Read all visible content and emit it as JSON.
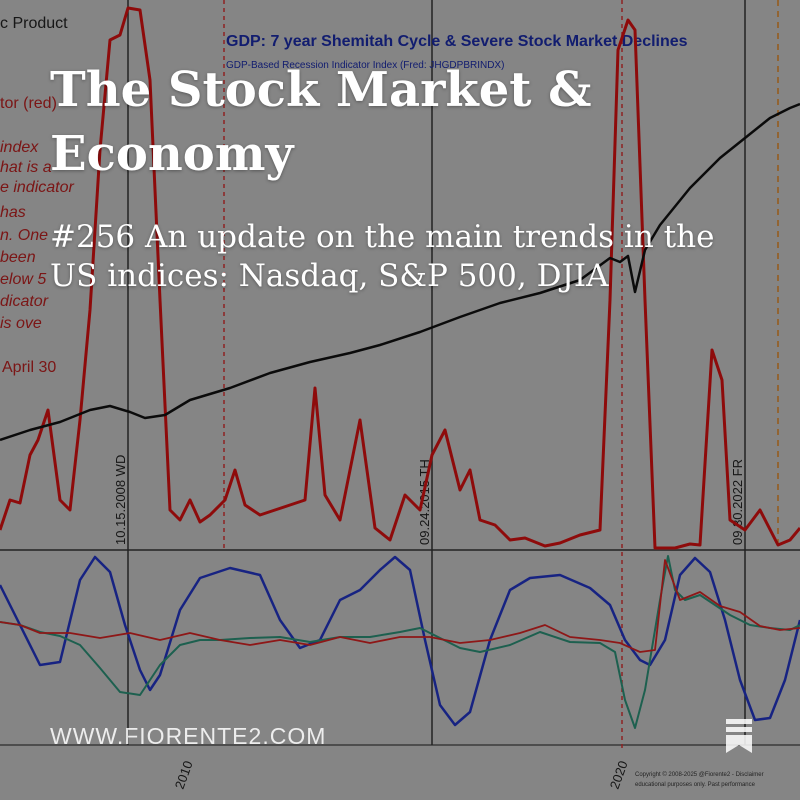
{
  "post": {
    "title": "The Stock Market & Economy",
    "subtitle": "#256 An update on the main trends in the US indices: Nasdaq, S&P 500, DJIA",
    "site": "WWW.FIORENTE2.COM",
    "bookmark_icon": "bookmark-icon"
  },
  "chart_image": {
    "title": "GDP: 7 year Shemitah Cycle & Severe Stock Market Declines",
    "subtitle": "GDP-Based Recession Indicator Index (Fred: JHGDPBRINDX)",
    "left_text": [
      "c Product",
      "tor (red)",
      "index",
      "hat is a",
      "e indicator",
      "has",
      "n. One",
      "been",
      "elow 5",
      "dicator",
      "is ove",
      "April 30"
    ],
    "cycle_labels": [
      "10.15.2008 WD",
      "09.24.2015 TH",
      "09.30.2022 FR"
    ],
    "x_ticks": [
      "2010",
      "2020"
    ],
    "copyright": [
      "Copyright © 2008-2025 @Fiorente2 - Disclaimer",
      "educational purposes only. Past performance"
    ],
    "colors": {
      "background": "#bfbfbf",
      "gdp_line": "#111111",
      "recession_index": "#cc1111",
      "oscillator_blue": "#2233bb",
      "oscillator_teal": "#2a8a72",
      "cycle_line": "#333333",
      "dashed_marker": "#cc3333",
      "title_blue": "#1a2aa0",
      "overlay": "#000000"
    }
  }
}
